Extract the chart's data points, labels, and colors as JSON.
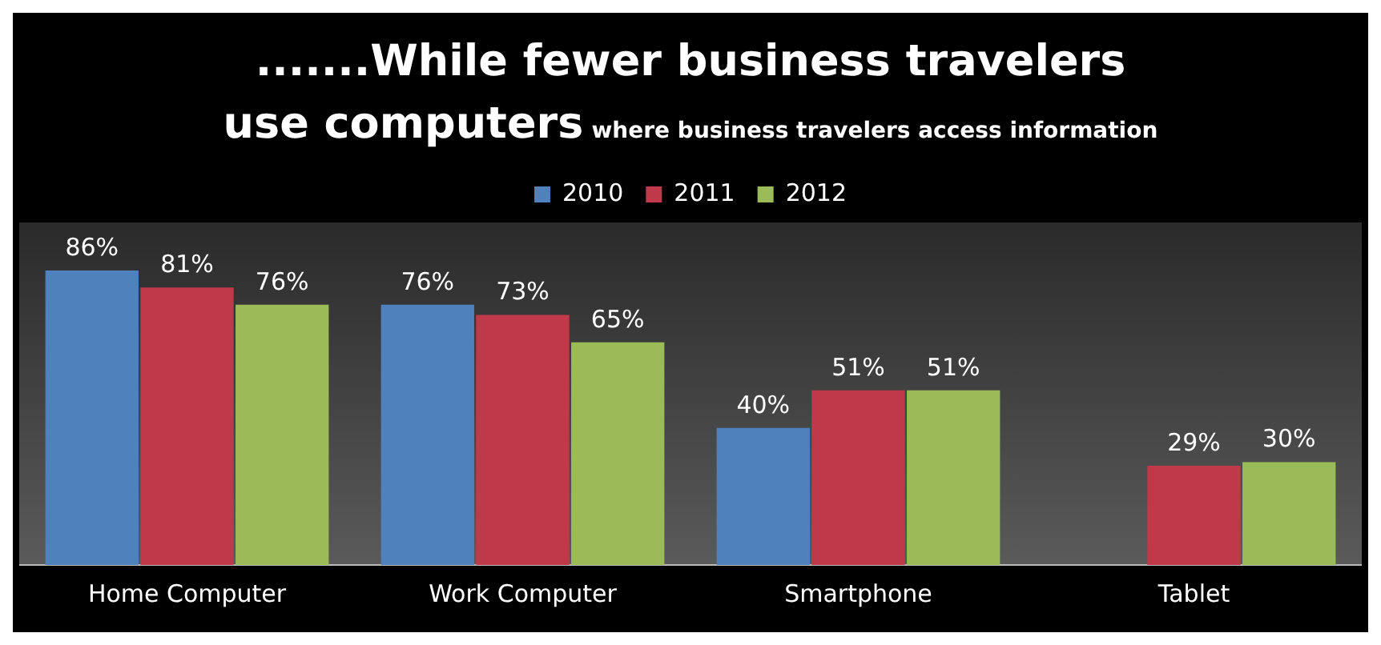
{
  "chart_data": {
    "type": "bar",
    "title": ".......While fewer business travelers use computers",
    "subtitle": "where business travelers access information",
    "categories": [
      "Home Computer",
      "Work Computer",
      "Smartphone",
      "Tablet"
    ],
    "series": [
      {
        "name": "2010",
        "color": "#4f81bd",
        "values": [
          86,
          76,
          40,
          null
        ],
        "value_labels": [
          "86%",
          "76%",
          "40%",
          null
        ]
      },
      {
        "name": "2011",
        "color": "#c0394b",
        "values": [
          81,
          73,
          51,
          29
        ],
        "value_labels": [
          "81%",
          "73%",
          "51%",
          "29%"
        ]
      },
      {
        "name": "2012",
        "color": "#9bbb59",
        "values": [
          76,
          65,
          51,
          30
        ],
        "value_labels": [
          "76%",
          "65%",
          "51%",
          "30%"
        ]
      }
    ],
    "legend": "top",
    "grid": false,
    "tick_labels": "x"
  }
}
